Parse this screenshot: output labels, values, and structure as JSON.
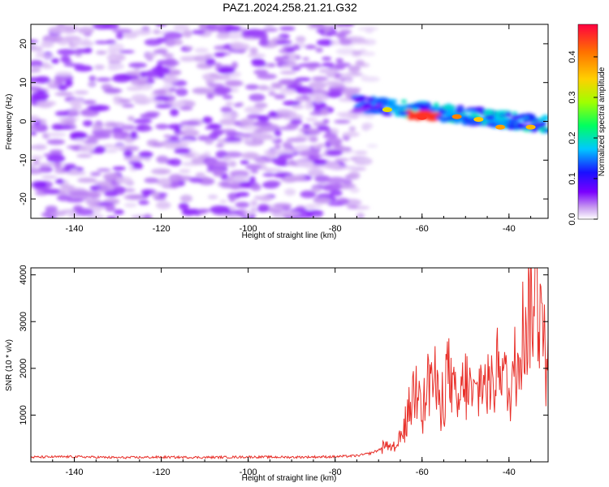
{
  "title": "PAZ1.2024.258.21.21.G32",
  "chart_data": [
    {
      "type": "heatmap",
      "xlabel": "Height of straight line (km)",
      "ylabel": "Frequency (Hz)",
      "xlim": [
        -150,
        -31
      ],
      "ylim": [
        -25,
        25
      ],
      "x_ticks": [
        "-140",
        "-120",
        "-100",
        "-80",
        "-60",
        "-40"
      ],
      "y_ticks": [
        "-20",
        "-10",
        "0",
        "10",
        "20"
      ],
      "colorbar": {
        "label": "Normalized spectral amplitude",
        "range": [
          0,
          0.48
        ],
        "ticks": [
          "0.0",
          "0.1",
          "0.2",
          "0.3",
          "0.4"
        ],
        "colors": [
          "#ffffff",
          "#c89cf0",
          "#7a00ff",
          "#1a10ff",
          "#00c8ff",
          "#00ff60",
          "#a0ff00",
          "#ffd000",
          "#ff7000",
          "#ff0040"
        ]
      },
      "features": [
        {
          "description": "diffuse noise",
          "x_range": [
            -150,
            -72
          ],
          "freq_range": [
            -25,
            25
          ],
          "amplitude_range": [
            0.0,
            0.05
          ]
        },
        {
          "description": "signal trace",
          "x_range": [
            -75,
            -31
          ],
          "freq_range": [
            -3,
            6
          ],
          "peak_amplitude": 0.45,
          "peak_x": -60,
          "peak_freq": 1
        }
      ]
    },
    {
      "type": "line",
      "xlabel": "Height of straight line (km)",
      "ylabel": "SNR (10 * v/v)",
      "xlim": [
        -150,
        -31
      ],
      "ylim": [
        0,
        4150
      ],
      "x_ticks": [
        "-140",
        "-120",
        "-100",
        "-80",
        "-60",
        "-40"
      ],
      "y_ticks": [
        "1000",
        "2000",
        "3000",
        "4000"
      ],
      "series": [
        {
          "color": "#e8302a",
          "x": [
            -150,
            -140,
            -130,
            -120,
            -110,
            -100,
            -90,
            -80,
            -75,
            -72,
            -70,
            -68,
            -66,
            -64,
            -62,
            -60.5,
            -60,
            -58,
            -56,
            -54,
            -52,
            -50,
            -48,
            -46,
            -44,
            -42,
            -40,
            -38,
            -36,
            -34,
            -33,
            -32.5,
            -32,
            -31.5,
            -31
          ],
          "y": [
            100,
            110,
            90,
            100,
            95,
            105,
            100,
            110,
            130,
            180,
            250,
            380,
            300,
            750,
            1500,
            2050,
            1100,
            1950,
            1250,
            2000,
            1100,
            1700,
            1350,
            1750,
            1600,
            2400,
            1300,
            2500,
            3000,
            3600,
            3400,
            4100,
            3800,
            1200,
            2650
          ]
        }
      ]
    }
  ]
}
